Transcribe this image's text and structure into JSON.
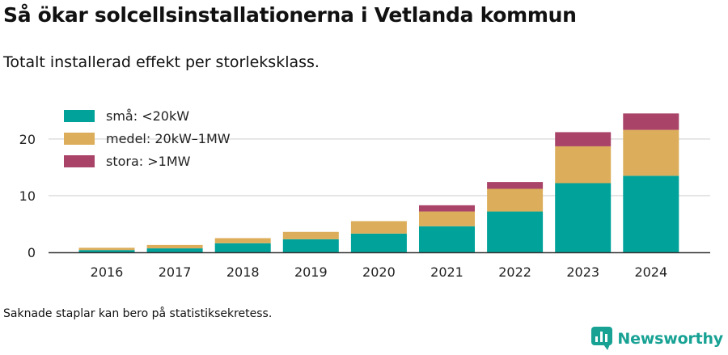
{
  "title": "Så ökar solcellsinstallationerna i Vetlanda kommun",
  "subtitle": "Totalt installerad effekt per storleksklass.",
  "footnote": "Saknade staplar kan bero på statistiksekretess.",
  "brand": {
    "name": "Newsworthy",
    "icon": "newsworthy-logo-icon",
    "color": "#18a294"
  },
  "chart_data": {
    "type": "bar",
    "stacked": true,
    "categories": [
      "2016",
      "2017",
      "2018",
      "2019",
      "2020",
      "2021",
      "2022",
      "2023",
      "2024"
    ],
    "series": [
      {
        "name": "små: <20kW",
        "color": "#00a29a",
        "values": [
          0.4,
          0.7,
          1.6,
          2.3,
          3.3,
          4.6,
          7.2,
          12.2,
          13.5
        ]
      },
      {
        "name": "medel: 20kW–1MW",
        "color": "#dcae5c",
        "values": [
          0.4,
          0.6,
          0.9,
          1.3,
          2.2,
          2.6,
          4.0,
          6.5,
          8.1
        ]
      },
      {
        "name": "stora: >1MW",
        "color": "#a94468",
        "values": [
          0,
          0,
          0,
          0,
          0,
          1.1,
          1.2,
          2.5,
          2.9
        ]
      }
    ],
    "yticks": [
      0,
      10,
      20
    ],
    "ylim": [
      0,
      24.4
    ],
    "grid": true,
    "legend": "top-left",
    "xlabel": "",
    "ylabel": ""
  }
}
